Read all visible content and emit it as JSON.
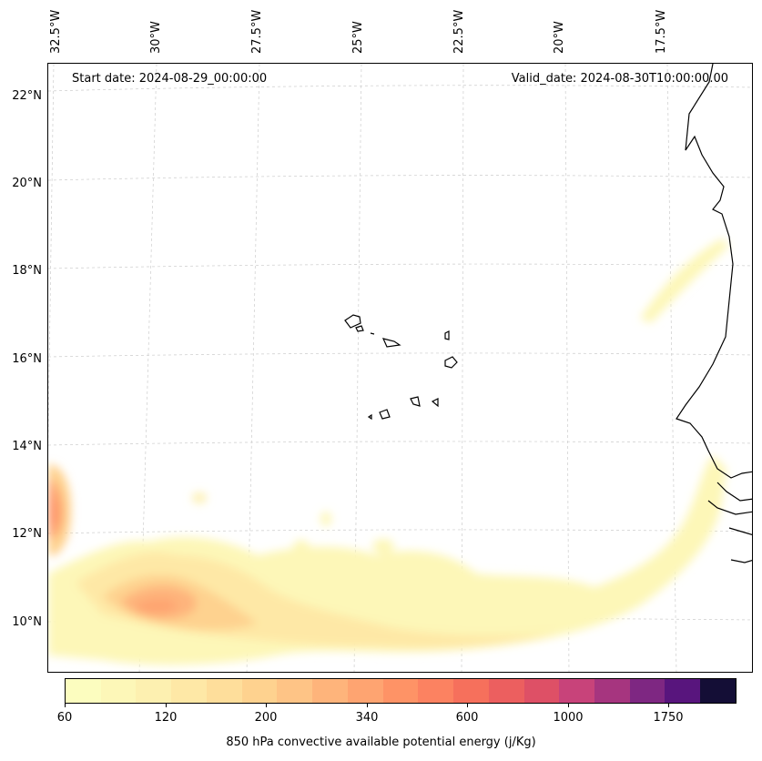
{
  "map": {
    "start_date": "Start date: 2024-08-29_00:00:00",
    "valid_date": "Valid_date: 2024-08-30T10:00:00.00",
    "lon_labels": [
      "32.5°W",
      "30°W",
      "27.5°W",
      "25°W",
      "22.5°W",
      "20°W",
      "17.5°W"
    ],
    "lat_labels": [
      "22°N",
      "20°N",
      "18°N",
      "16°N",
      "14°N",
      "12°N",
      "10°N"
    ],
    "coastline_color": "#000000",
    "gridline_color": "#cccccc"
  },
  "colorbar": {
    "label": "850 hPa convective available potential energy (j/Kg)",
    "ticks": [
      "60",
      "120",
      "200",
      "340",
      "600",
      "1000",
      "1750"
    ],
    "colors": [
      "#fcfdbf",
      "#fdf7b8",
      "#fdf0b0",
      "#fee8a6",
      "#fede9b",
      "#fed28f",
      "#fec486",
      "#feb47b",
      "#fea471",
      "#fe9366",
      "#fc8261",
      "#f6705c",
      "#ec5f5f",
      "#de5066",
      "#c8437a",
      "#a6357f",
      "#7e2782",
      "#58157d",
      "#140e36"
    ],
    "cmap": "magma_r"
  }
}
